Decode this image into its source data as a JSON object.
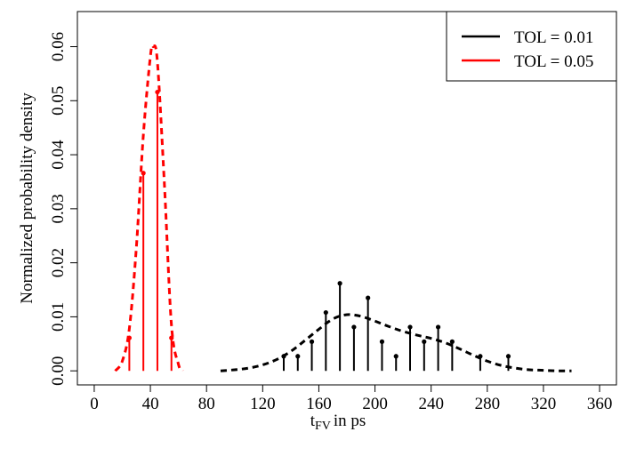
{
  "chart_data": {
    "type": "line",
    "xlabel": {
      "main": "t",
      "sub": "FV",
      "rest": "in ps"
    },
    "ylabel": "Normalized probability density",
    "xlim": [
      -12,
      372
    ],
    "ylim": [
      -0.0026,
      0.0665
    ],
    "x_ticks": [
      0,
      40,
      80,
      120,
      160,
      200,
      240,
      280,
      320,
      360
    ],
    "x_tick_labels": [
      "0",
      "40",
      "80",
      "120",
      "160",
      "200",
      "240",
      "280",
      "320",
      "360"
    ],
    "y_ticks": [
      0.0,
      0.01,
      0.02,
      0.03,
      0.04,
      0.05,
      0.06
    ],
    "y_tick_labels": [
      "0.00",
      "0.01",
      "0.02",
      "0.03",
      "0.04",
      "0.05",
      "0.06"
    ],
    "legend_position": "top-right",
    "series": [
      {
        "name": "TOL = 0.01",
        "color": "#000000",
        "samples": {
          "x": [
            135,
            145,
            155,
            165,
            175,
            185,
            195,
            205,
            215,
            225,
            235,
            245,
            255,
            275,
            295
          ],
          "y": [
            0.0027,
            0.0027,
            0.0054,
            0.0108,
            0.0162,
            0.0081,
            0.0135,
            0.0054,
            0.0027,
            0.0081,
            0.0054,
            0.0081,
            0.0054,
            0.0027,
            0.0027
          ]
        },
        "density": {
          "x": [
            90,
            100,
            110,
            120,
            130,
            140,
            150,
            160,
            170,
            180,
            190,
            200,
            210,
            220,
            230,
            240,
            250,
            260,
            270,
            280,
            290,
            300,
            310,
            320,
            330,
            340
          ],
          "y": [
            0.0,
            0.0002,
            0.0005,
            0.0011,
            0.0021,
            0.0036,
            0.0056,
            0.0077,
            0.0096,
            0.0104,
            0.0101,
            0.0092,
            0.0082,
            0.0073,
            0.0066,
            0.006,
            0.0052,
            0.0041,
            0.0029,
            0.0018,
            0.001,
            0.0005,
            0.0002,
            0.0001,
            0.0,
            0.0
          ]
        }
      },
      {
        "name": "TOL = 0.05",
        "color": "#ff0000",
        "samples": {
          "x": [
            25,
            35,
            45,
            55
          ],
          "y": [
            0.0061,
            0.0366,
            0.0516,
            0.0061
          ]
        },
        "density": {
          "x": [
            15,
            20,
            25,
            30,
            35,
            40,
            42,
            45,
            50,
            55,
            60,
            63
          ],
          "y": [
            0.0,
            0.0018,
            0.0078,
            0.0228,
            0.0437,
            0.0582,
            0.06,
            0.0572,
            0.0345,
            0.0085,
            0.0012,
            0.0
          ]
        }
      }
    ]
  }
}
